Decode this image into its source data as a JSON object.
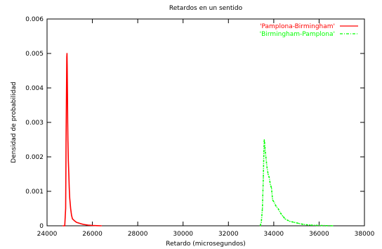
{
  "chart_data": {
    "type": "line",
    "title": "Retardos en un sentido",
    "xlabel": "Retardo (microsegundos)",
    "ylabel": "Densidad de probabilidad",
    "xlim": [
      24000,
      38000
    ],
    "ylim": [
      0,
      0.006
    ],
    "x_ticks": [
      "24000",
      "26000",
      "28000",
      "30000",
      "32000",
      "34000",
      "36000",
      "38000"
    ],
    "y_ticks": [
      "0",
      "0.001",
      "0.002",
      "0.003",
      "0.004",
      "0.005",
      "0.006"
    ],
    "grid": false,
    "legend_position": "top-right",
    "series": [
      {
        "name": "'Pamplona-Birmingham'",
        "color": "#ff0000",
        "style": "solid",
        "x": [
          24700,
          24780,
          24820,
          24840,
          24860,
          24870,
          24880,
          24890,
          24900,
          24910,
          24920,
          24940,
          24960,
          24980,
          25000,
          25040,
          25080,
          25120,
          25200,
          25300,
          25400,
          25500,
          25600,
          25800,
          26000,
          26200,
          26400
        ],
        "values": [
          0,
          0,
          0.0005,
          0.0025,
          0.0042,
          0.0049,
          0.005,
          0.0046,
          0.0038,
          0.003,
          0.0025,
          0.0019,
          0.0015,
          0.0011,
          0.0008,
          0.0005,
          0.0003,
          0.0002,
          0.00015,
          0.0001,
          8e-05,
          6e-05,
          4e-05,
          2e-05,
          1e-05,
          5e-06,
          0
        ]
      },
      {
        "name": "'Birmingham-Pamplona'",
        "color": "#00ff00",
        "style": "dash-dot",
        "x": [
          33400,
          33450,
          33500,
          33540,
          33560,
          33580,
          33600,
          33620,
          33650,
          33700,
          33750,
          33800,
          33850,
          33900,
          33950,
          34000,
          34100,
          34200,
          34300,
          34400,
          34500,
          34700,
          34900,
          35100,
          35300,
          35600,
          36000,
          36300,
          36600
        ],
        "values": [
          0,
          0.0001,
          0.0005,
          0.0014,
          0.0021,
          0.0025,
          0.0024,
          0.0022,
          0.002,
          0.0017,
          0.0015,
          0.0014,
          0.0012,
          0.0011,
          0.00075,
          0.0007,
          0.00057,
          0.00049,
          0.00037,
          0.00028,
          0.0002,
          0.00013,
          0.0001,
          7e-05,
          4e-05,
          2e-05,
          1e-05,
          5e-06,
          0
        ]
      }
    ]
  }
}
